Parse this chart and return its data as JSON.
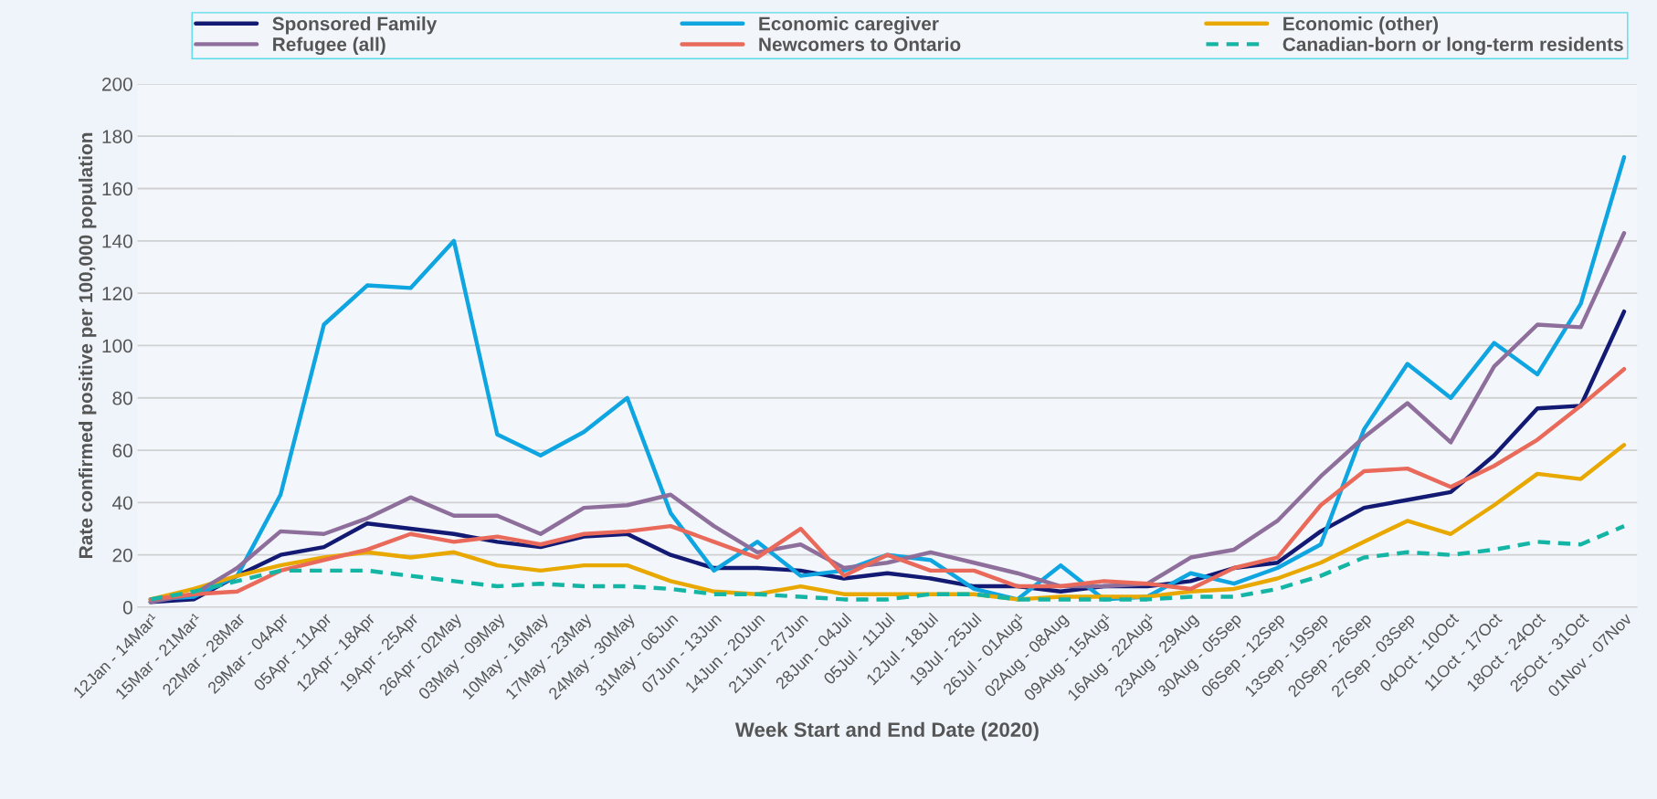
{
  "chart_data": {
    "type": "line",
    "xlabel": "Week Start and End Date (2020)",
    "ylabel": "Rate confirmed positive per 100,000 population",
    "categories": [
      "12Jan - 14Mar¹",
      "15Mar - 21Mar¹",
      "22Mar - 28Mar",
      "29Mar - 04Apr",
      "05Apr - 11Apr",
      "12Apr - 18Apr",
      "19Apr - 25Apr",
      "26Apr - 02May",
      "03May - 09May",
      "10May - 16May",
      "17May - 23May",
      "24May - 30May",
      "31May - 06Jun",
      "07Jun - 13Jun",
      "14Jun - 20Jun",
      "21Jun - 27Jun",
      "28Jun - 04Jul",
      "05Jul - 11Jul",
      "12Jul - 18Jul",
      "19Jul - 25Jul",
      "26Jul - 01Aug¹",
      "02Aug - 08Aug",
      "09Aug - 15Aug¹",
      "16Aug - 22Aug¹",
      "23Aug - 29Aug",
      "30Aug - 05Sep",
      "06Sep - 12Sep",
      "13Sep - 19Sep",
      "20Sep - 26Sep",
      "27Sep - 03Sep",
      "04Oct - 10Oct",
      "11Oct - 17Oct",
      "18Oct - 24Oct",
      "25Oct - 31Oct",
      "01Nov - 07Nov"
    ],
    "ylim": [
      0,
      200
    ],
    "yticks": [
      0,
      20,
      40,
      60,
      80,
      100,
      120,
      140,
      160,
      180,
      200
    ],
    "grid": "y",
    "legend": "top",
    "marker": "none",
    "series": [
      {
        "name": "Sponsored Family",
        "color": "#131a73",
        "line_style": "solid",
        "values": [
          2,
          3,
          12,
          20,
          23,
          32,
          30,
          28,
          25,
          23,
          27,
          28,
          20,
          15,
          15,
          14,
          11,
          13,
          11,
          8,
          8,
          6,
          8,
          8,
          10,
          15,
          17,
          29,
          38,
          41,
          44,
          58,
          76,
          77,
          113
        ]
      },
      {
        "name": "Economic caregiver",
        "color": "#0ea5e0",
        "line_style": "solid",
        "values": [
          3,
          4,
          12,
          43,
          108,
          123,
          122,
          140,
          66,
          58,
          67,
          80,
          36,
          14,
          25,
          12,
          14,
          20,
          18,
          7,
          3,
          16,
          3,
          4,
          13,
          9,
          15,
          24,
          68,
          93,
          80,
          101,
          89,
          116,
          172
        ]
      },
      {
        "name": "Economic (other)",
        "color": "#e9a800",
        "line_style": "solid",
        "values": [
          3,
          7,
          12,
          16,
          19,
          21,
          19,
          21,
          16,
          14,
          16,
          16,
          10,
          6,
          5,
          8,
          5,
          5,
          5,
          5,
          3,
          4,
          4,
          4,
          6,
          7,
          11,
          17,
          25,
          33,
          28,
          39,
          51,
          49,
          62
        ]
      },
      {
        "name": "Refugee (all)",
        "color": "#8e6f9b",
        "line_style": "solid",
        "values": [
          2,
          5,
          15,
          29,
          28,
          34,
          42,
          35,
          35,
          28,
          38,
          39,
          43,
          31,
          21,
          24,
          15,
          17,
          21,
          17,
          13,
          8,
          8,
          9,
          19,
          22,
          33,
          50,
          65,
          78,
          63,
          92,
          108,
          107,
          143
        ]
      },
      {
        "name": "Newcomers to Ontario",
        "color": "#e9695a",
        "line_style": "solid",
        "values": [
          3,
          5,
          6,
          14,
          18,
          22,
          28,
          25,
          27,
          24,
          28,
          29,
          31,
          25,
          19,
          30,
          12,
          20,
          14,
          14,
          8,
          8,
          10,
          9,
          7,
          15,
          19,
          39,
          52,
          53,
          46,
          54,
          64,
          77,
          91
        ]
      },
      {
        "name": "Canadian-born or long-term residents",
        "color": "#14b5a5",
        "line_style": "dashed",
        "values": [
          3,
          6,
          10,
          14,
          14,
          14,
          12,
          10,
          8,
          9,
          8,
          8,
          7,
          5,
          5,
          4,
          3,
          3,
          5,
          5,
          3,
          3,
          3,
          3,
          4,
          4,
          7,
          12,
          19,
          21,
          20,
          22,
          25,
          24,
          31
        ]
      }
    ]
  }
}
